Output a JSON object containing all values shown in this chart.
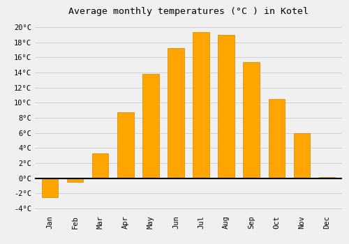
{
  "title": "Average monthly temperatures (°C ) in Kotel",
  "months": [
    "Jan",
    "Feb",
    "Mar",
    "Apr",
    "May",
    "Jun",
    "Jul",
    "Aug",
    "Sep",
    "Oct",
    "Nov",
    "Dec"
  ],
  "values": [
    -2.5,
    -0.5,
    3.3,
    8.7,
    13.8,
    17.2,
    19.3,
    19.0,
    15.4,
    10.5,
    6.0,
    0.2
  ],
  "bar_color": "#FFA500",
  "bar_edge_color": "#CC8800",
  "ylim": [
    -4.5,
    21
  ],
  "yticks": [
    -4,
    -2,
    0,
    2,
    4,
    6,
    8,
    10,
    12,
    14,
    16,
    18,
    20
  ],
  "background_color": "#F0F0F0",
  "grid_color": "#CCCCCC",
  "title_fontsize": 9.5,
  "tick_fontsize": 7.5
}
